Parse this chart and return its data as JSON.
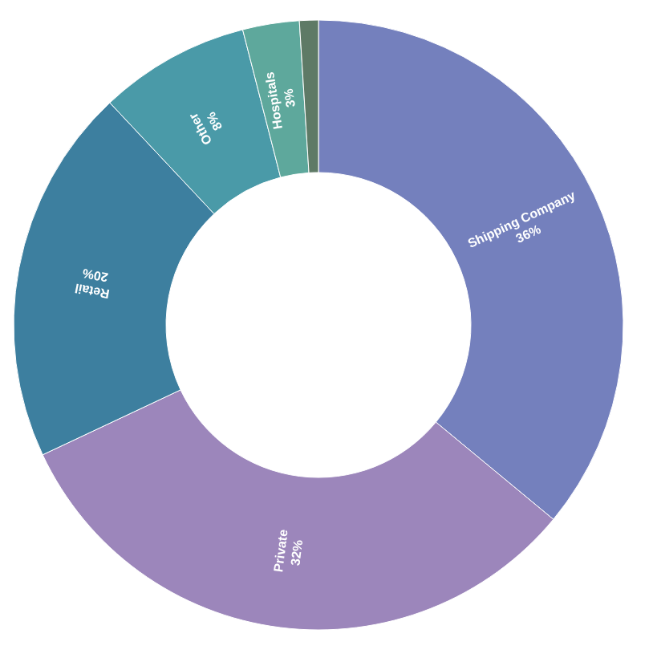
{
  "chart_data": {
    "type": "donut",
    "categories": [
      "Shipping Company",
      "Private",
      "Retail",
      "Other",
      "Hospitals",
      null
    ],
    "values": [
      36,
      32,
      20,
      8,
      3,
      1
    ],
    "colors": [
      "#7480bd",
      "#9c86bb",
      "#3d7f9f",
      "#4a9aa8",
      "#5ea89c",
      "#5e7a66"
    ],
    "value_labels": [
      "36%",
      "32%",
      "20%",
      "8%",
      "3%",
      null
    ],
    "legend": false
  }
}
